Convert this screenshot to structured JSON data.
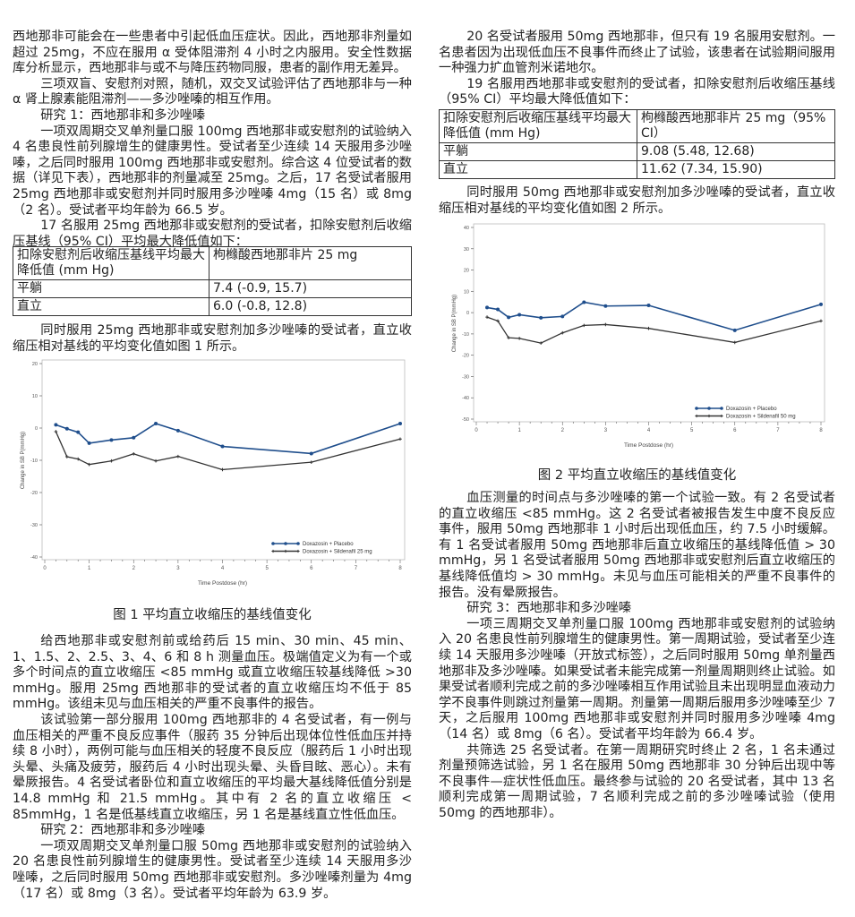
{
  "left": {
    "p1": "西地那非可能会在一些患者中引起低血压症状。因此，西地那非剂量如超过 25mg，不应在服用 α 受体阻滞剂 4 小时之内服用。安全性数据库分析显示，西地那非与或不与降压药物同服，患者的副作用无差异。",
    "p2": "三项双盲、安慰剂对照，随机，双交叉试验评估了西地那非与一种 α 肾上腺素能阻滞剂——多沙唑嗪的相互作用。",
    "p3": "研究 1：西地那非和多沙唑嗪",
    "p4": "一项双周期交叉单剂量口服 100mg 西地那非或安慰剂的试验纳入 4 名患良性前列腺增生的健康男性。受试者至少连续 14 天服用多沙唑嗪，之后同时服用 100mg 西地那非或安慰剂。综合这 4 位受试者的数据（详见下表），西地那非的剂量减至 25mg。之后，17 名受试者服用25mg 西地那非或安慰剂并同时服用多沙唑嗪 4mg（15 名）或 8mg（2 名）。受试者平均年龄为 66.5 岁。",
    "p5": "17 名服用 25mg 西地那非或安慰剂的受试者，扣除安慰剂后收缩压基线（95% CI）平均最大降低值如下：",
    "table": {
      "header": [
        "扣除安慰剂后收缩压基线平均最大降低值 (mm Hg)",
        "枸橼酸西地那非片 25 mg"
      ],
      "rows": [
        [
          "平躺",
          "7.4 (-0.9, 15.7)"
        ],
        [
          "直立",
          "6.0 (-0.8, 12.8)"
        ]
      ]
    },
    "p6": "同时服用 25mg 西地那非或安慰剂加多沙唑嗪的受试者，直立收缩压相对基线的平均变化值如图 1 所示。",
    "caption": "图 1 平均直立收缩压的基线值变化",
    "p7": "给西地那非或安慰剂前或给药后 15 min、30 min、45 min、1、1.5、2、2.5、3、4、6 和 8 h 测量血压。极端值定义为有一个或多个时间点的直立收缩压 <85 mmHg 或直立收缩压较基线降低 >30 mmHg。服用 25mg 西地那非的受试者的直立收缩压均不低于 85 mmHg。该组未见与血压相关的严重不良事件的报告。",
    "p8": "该试验第一部分服用 100mg 西地那非的 4 名受试者，有一例与血压相关的严重不良反应事件（服药 35 分钟后出现体位性低血压并持续 8 小时），两例可能与血压相关的轻度不良反应（服药后 1 小时出现头晕、头痛及疲劳，服药后 4 小时出现头晕、头昏目眩、恶心）。未有晕厥报告。4 名受试者卧位和直立收缩压的平均最大基线降低值分别是 14.8 mmHg 和 21.5 mmHg。其中有 2 名的直立收缩压 < 85mmHg，1 名是低基线直立收缩压，另 1 名是基线直立性低血压。",
    "p9": "研究 2：西地那非和多沙唑嗪",
    "p10": "一项双周期交叉单剂量口服 50mg 西地那非或安慰剂的试验纳入 20 名患良性前列腺增生的健康男性。受试者至少连续 14 天服用多沙唑嗪，之后同时服用 50mg 西地那非或安慰剂。多沙唑嗪剂量为 4mg（17 名）或 8mg（3 名）。受试者平均年龄为 63.9 岁。"
  },
  "right": {
    "p1": "20 名受试者服用 50mg 西地那非，但只有 19 名服用安慰剂。一名患者因为出现低血压不良事件而终止了试验，该患者在试验期间服用一种强力扩血管剂米诺地尔。",
    "p2": "19 名服用西地那非或安慰剂的受试者，扣除安慰剂后收缩压基线（95% CI）平均最大降低值如下：",
    "table": {
      "header": [
        "扣除安慰剂后收缩压基线平均最大降低值 (mm Hg)",
        "枸橼酸西地那非片 25 mg（95% CI）"
      ],
      "rows": [
        [
          "平躺",
          "9.08 (5.48, 12.68)"
        ],
        [
          "直立",
          "11.62 (7.34, 15.90)"
        ]
      ]
    },
    "p3": "同时服用 50mg 西地那非或安慰剂加多沙唑嗪的受试者，直立收缩压相对基线的平均变化值如图 2 所示。",
    "caption": "图 2 平均直立收缩压的基线值变化",
    "p4": "血压测量的时间点与多沙唑嗪的第一个试验一致。有 2 名受试者的直立收缩压 <85 mmHg。这 2 名受试者被报告发生中度不良反应事件，服用 50mg 西地那非 1 小时后出现低血压，约 7.5 小时缓解。有 1 名受试者服用 50mg 西地那非后直立收缩压的基线降低值 > 30 mmHg，另 1 名受试者服用 50mg 西地那非或安慰剂后直立收缩压的基线降低值均 > 30 mmHg。未见与血压可能相关的严重不良事件的报告。没有晕厥报告。",
    "p5": "研究 3：西地那非和多沙唑嗪",
    "p6": "一项三周期交叉单剂量口服 100mg 西地那非或安慰剂的试验纳入 20 名患良性前列腺增生的健康男性。第一周期试验，受试者至少连续 14 天服用多沙唑嗪（开放式标签），之后同时服用 50mg 单剂量西地那非及多沙唑嗪。如果受试者未能完成第一剂量周期则终止试验。如果受试者顺利完成之前的多沙唑嗪相互作用试验且未出现明显血液动力学不良事件则跳过剂量第一周期。剂量第一周期后服用多沙唑嗪至少 7 天，之后服用 100mg 西地那非或安慰剂并同时服用多沙唑嗪 4mg（14 名）或 8mg（6 名）。受试者平均年龄为 66.4 岁。",
    "p7": "共筛选 25 名受试者。在第一周期研究时终止 2 名，1 名未通过剂量预筛选试验，另 1 名在服用 50mg 西地那非 30 分钟后出现中等不良事件—症状性低血压。最终参与试验的 20 名受试者，其中 13 名顺利完成第一周期试验，7 名顺利完成之前的多沙唑嗪试验（使用 50mg 的西地那非）。"
  },
  "chart_data": [
    {
      "type": "line",
      "xlabel": "Time Postdose (hr)",
      "ylabel": "Change in SB P(mmHg)",
      "xlim": [
        0,
        8
      ],
      "ylim": [
        -40,
        20
      ],
      "xticks": [
        0,
        1,
        2,
        3,
        4,
        5,
        6,
        7,
        8
      ],
      "yticks": [
        20,
        10,
        0,
        -10,
        -20,
        -30,
        -40
      ],
      "grid": false,
      "legend": "bottom-right",
      "x": [
        0.25,
        0.5,
        0.75,
        1,
        1.5,
        2,
        2.5,
        3,
        4,
        6,
        8
      ],
      "series": [
        {
          "name": "Doxazosin + Placebo",
          "color": "#1f4e8c",
          "marker": "circle",
          "values": [
            1.0,
            -0.2,
            -1.3,
            -4.7,
            -3.7,
            -3.0,
            1.4,
            -0.8,
            -5.7,
            -7.9,
            1.4
          ]
        },
        {
          "name": "Doxazosin + Sildenafil 25 mg",
          "color": "#333333",
          "marker": "plus",
          "values": [
            -1.1,
            -8.9,
            -9.6,
            -11.3,
            -10.2,
            -8.0,
            -10.2,
            -8.8,
            -12.9,
            -10.6,
            -3.4
          ]
        }
      ]
    },
    {
      "type": "line",
      "xlabel": "Time Postdose (hr)",
      "ylabel": "Change in SB P(mmHg)",
      "xlim": [
        0,
        8
      ],
      "ylim": [
        -50,
        40
      ],
      "xticks": [
        0,
        1,
        2,
        3,
        4,
        5,
        6,
        7,
        8
      ],
      "yticks": [
        40,
        30,
        20,
        10,
        0,
        -10,
        -20,
        -30,
        -40,
        -50
      ],
      "grid": false,
      "legend": "bottom-right",
      "x": [
        0.25,
        0.5,
        0.75,
        1,
        1.5,
        2,
        2.5,
        3,
        4,
        6,
        8
      ],
      "series": [
        {
          "name": "Doxazosin + Placebo",
          "color": "#1f4e8c",
          "marker": "circle",
          "values": [
            2.4,
            1.5,
            -2.2,
            -1.0,
            -2.4,
            -1.8,
            4.9,
            3.1,
            3.4,
            -8.3,
            3.9
          ]
        },
        {
          "name": "Doxazosin + Sildenafil 50 mg",
          "color": "#333333",
          "marker": "plus",
          "values": [
            -2.1,
            -3.9,
            -11.8,
            -12.1,
            -14.3,
            -9.5,
            -6.0,
            -5.6,
            -7.4,
            -14.0,
            -3.9
          ]
        }
      ]
    }
  ]
}
